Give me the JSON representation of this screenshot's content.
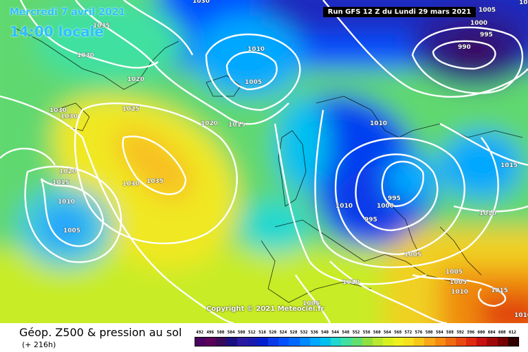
{
  "header": {
    "date": "Mercredi 7 avril 2021",
    "time": "14:00 locale",
    "run": "Run GFS 12 Z du Lundi 29 mars 2021"
  },
  "copyright": "Copyright © 2021 Meteociel.fr",
  "legend": {
    "title": "Géop. Z500 & pression au sol",
    "subtitle": "(+ 216h)",
    "scale": [
      "492",
      "496",
      "500",
      "504",
      "508",
      "512",
      "516",
      "520",
      "524",
      "528",
      "532",
      "536",
      "540",
      "544",
      "548",
      "552",
      "556",
      "560",
      "564",
      "568",
      "572",
      "576",
      "580",
      "584",
      "588",
      "592",
      "596",
      "600",
      "604",
      "608",
      "612"
    ],
    "colors": [
      "#4b0060",
      "#5a005a",
      "#3a0a5a",
      "#1a1080",
      "#2a1aa0",
      "#1a1ab0",
      "#0020d0",
      "#0a3ae8",
      "#0050ff",
      "#0068ff",
      "#0088ff",
      "#00a8ff",
      "#00c0f0",
      "#20d8d0",
      "#40e0a0",
      "#60e070",
      "#90e040",
      "#b8e830",
      "#d8f020",
      "#f0f020",
      "#f8e020",
      "#f8c818",
      "#f8a818",
      "#f88a10",
      "#f06a10",
      "#e84a10",
      "#e02a10",
      "#c81010",
      "#a00808",
      "#780000",
      "#300000"
    ]
  },
  "isobars": [
    "1030",
    "1035",
    "1030",
    "1020",
    "1030",
    "1030",
    "1025",
    "1020",
    "1015",
    "1010",
    "1005",
    "1010",
    "1005",
    "1000",
    "995",
    "990",
    "1035",
    "1030",
    "1020",
    "1015",
    "1010",
    "1005",
    "1010",
    "1000",
    "995",
    "995",
    "1005",
    "1010",
    "1015",
    "1010",
    "1005",
    "1005",
    "1010",
    "1015",
    "1015",
    "1010",
    "1005"
  ]
}
